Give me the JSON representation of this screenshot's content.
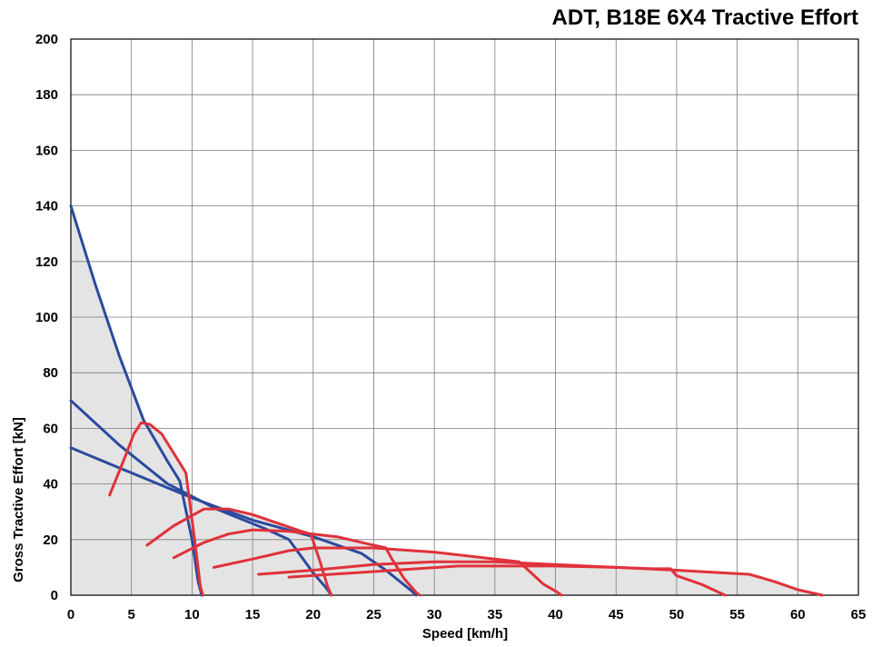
{
  "chart_data": {
    "type": "line",
    "title": "ADT, B18E 6X4 Tractive Effort",
    "xlabel": "Speed [km/h]",
    "ylabel": "Gross Tractive Effort [kN]",
    "xlim": [
      0,
      65
    ],
    "ylim": [
      0,
      200
    ],
    "xticks": [
      "0",
      "5",
      "10",
      "15",
      "20",
      "25",
      "30",
      "35",
      "40",
      "45",
      "50",
      "55",
      "60",
      "65"
    ],
    "yticks": [
      "0",
      "20",
      "40",
      "60",
      "80",
      "100",
      "120",
      "140",
      "160",
      "180",
      "200"
    ],
    "grid": true,
    "shaded_area": true,
    "colors": {
      "blue": "#2b4a9e",
      "red": "#e0323a",
      "fill": "#e4e4e4",
      "grid": "#7a7a7a"
    },
    "series": [
      {
        "color": "#2b4a9e",
        "points": [
          [
            0,
            140
          ],
          [
            2,
            112
          ],
          [
            4,
            86
          ],
          [
            6,
            63
          ],
          [
            8,
            48
          ],
          [
            9,
            41
          ],
          [
            10,
            20
          ],
          [
            10.5,
            5
          ],
          [
            10.8,
            0
          ]
        ]
      },
      {
        "color": "#2b4a9e",
        "points": [
          [
            0,
            70
          ],
          [
            4,
            54
          ],
          [
            8,
            40
          ],
          [
            12,
            31
          ],
          [
            16,
            24
          ],
          [
            18,
            20
          ],
          [
            20,
            8
          ],
          [
            21,
            3
          ],
          [
            21.5,
            0
          ]
        ]
      },
      {
        "color": "#2b4a9e",
        "points": [
          [
            0,
            53
          ],
          [
            5,
            44
          ],
          [
            10,
            35
          ],
          [
            15,
            27
          ],
          [
            20,
            21
          ],
          [
            24,
            15
          ],
          [
            26,
            9
          ],
          [
            28,
            2
          ],
          [
            28.5,
            0
          ]
        ]
      },
      {
        "color": "#e0323a",
        "points": [
          [
            3.2,
            36
          ],
          [
            4.5,
            50
          ],
          [
            5.2,
            58
          ],
          [
            5.8,
            62
          ],
          [
            6.5,
            61.5
          ],
          [
            7.5,
            58
          ],
          [
            8.5,
            51
          ],
          [
            9.5,
            44
          ],
          [
            10.3,
            17
          ],
          [
            10.7,
            3
          ],
          [
            10.9,
            0
          ]
        ]
      },
      {
        "color": "#e0323a",
        "points": [
          [
            6.3,
            18
          ],
          [
            8.5,
            25
          ],
          [
            11,
            31
          ],
          [
            13,
            31
          ],
          [
            15,
            29
          ],
          [
            17,
            26
          ],
          [
            19,
            23
          ],
          [
            19.8,
            22
          ],
          [
            20.5,
            13
          ],
          [
            21.2,
            3
          ],
          [
            21.5,
            0
          ]
        ]
      },
      {
        "color": "#e0323a",
        "points": [
          [
            8.5,
            13.5
          ],
          [
            11,
            19
          ],
          [
            13,
            22
          ],
          [
            15,
            23.5
          ],
          [
            18,
            23
          ],
          [
            20,
            22
          ],
          [
            22,
            21
          ],
          [
            24,
            19
          ],
          [
            26,
            17
          ],
          [
            26.5,
            13
          ],
          [
            27.5,
            6
          ],
          [
            28.5,
            1
          ],
          [
            28.8,
            0
          ]
        ]
      },
      {
        "color": "#e0323a",
        "points": [
          [
            11.8,
            10
          ],
          [
            15,
            13
          ],
          [
            18,
            16
          ],
          [
            20,
            17
          ],
          [
            25,
            17
          ],
          [
            30,
            15.5
          ],
          [
            35,
            13
          ],
          [
            37,
            12
          ],
          [
            38,
            8
          ],
          [
            39,
            4
          ],
          [
            40,
            1.5
          ],
          [
            40.5,
            0
          ]
        ]
      },
      {
        "color": "#e0323a",
        "points": [
          [
            15.5,
            7.5
          ],
          [
            20,
            9
          ],
          [
            25,
            11
          ],
          [
            30,
            12
          ],
          [
            35,
            12
          ],
          [
            40,
            11
          ],
          [
            45,
            10
          ],
          [
            48,
            9.5
          ],
          [
            49.5,
            9.5
          ],
          [
            50,
            7
          ],
          [
            52,
            4
          ],
          [
            54,
            0
          ]
        ]
      },
      {
        "color": "#e0323a",
        "points": [
          [
            18,
            6.5
          ],
          [
            25,
            8.5
          ],
          [
            32,
            10.5
          ],
          [
            40,
            10.5
          ],
          [
            45,
            10
          ],
          [
            50,
            9
          ],
          [
            56,
            7.5
          ],
          [
            58,
            5
          ],
          [
            60,
            2
          ],
          [
            62,
            0
          ]
        ]
      }
    ]
  }
}
